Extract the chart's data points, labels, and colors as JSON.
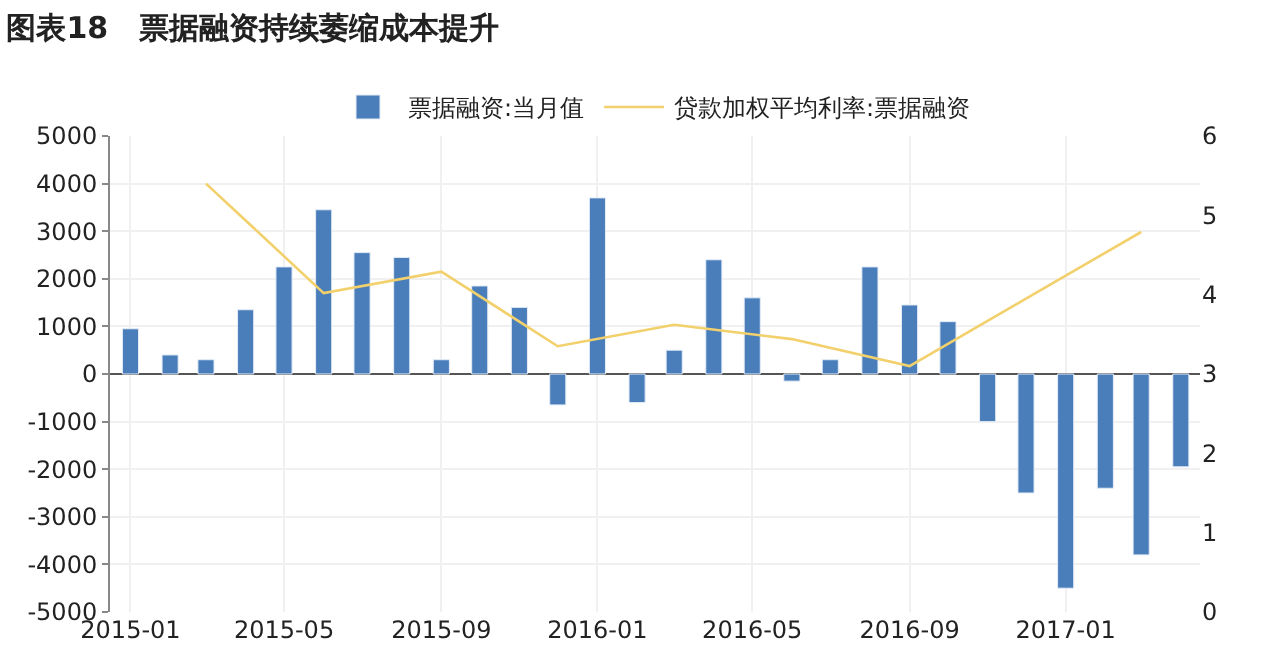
{
  "chart_data": {
    "type": "bar",
    "title": "图表18   票据融资持续萎缩成本提升",
    "x": [
      "2015-01",
      "2015-02",
      "2015-03",
      "2015-04",
      "2015-05",
      "2015-06",
      "2015-07",
      "2015-08",
      "2015-09",
      "2015-10",
      "2015-11",
      "2015-12",
      "2016-01",
      "2016-02",
      "2016-03",
      "2016-04",
      "2016-05",
      "2016-06",
      "2016-07",
      "2016-08",
      "2016-09",
      "2016-10",
      "2016-11",
      "2016-12",
      "2017-01",
      "2017-02",
      "2017-03",
      "2017-04"
    ],
    "series": [
      {
        "name": "票据融资:当月值",
        "color": "#4a7ebb",
        "values": [
          950,
          400,
          300,
          1350,
          2250,
          3450,
          2550,
          2450,
          300,
          1850,
          1400,
          -650,
          3700,
          -600,
          500,
          2400,
          1600,
          -150,
          300,
          2250,
          1450,
          1100,
          -1000,
          -2500,
          -4500,
          -2400,
          -3800,
          -1950
        ]
      },
      {
        "name": "贷款加权平均利率:票据融资",
        "type": "line",
        "axis": "y2",
        "color": "#f2d06b",
        "x": [
          "2015-03",
          "2015-06",
          "2015-09",
          "2015-12",
          "2016-03",
          "2016-06",
          "2016-09",
          "2016-12",
          "2017-03"
        ],
        "values": [
          5.4,
          4.02,
          4.29,
          3.35,
          3.62,
          3.44,
          3.1,
          3.95,
          4.79
        ]
      }
    ],
    "xlim": [
      "2014-12-16",
      "2017-04-16"
    ],
    "xticks": [
      "2015-01",
      "2015-05",
      "2015-09",
      "2016-01",
      "2016-05",
      "2016-09",
      "2017-01"
    ],
    "ylim": [
      -5000,
      5000
    ],
    "yticks": [
      -5000,
      -4000,
      -3000,
      -2000,
      -1000,
      0,
      1000,
      2000,
      3000,
      4000,
      5000
    ],
    "y2lim": [
      0,
      6
    ],
    "y2ticks": [
      0,
      1,
      2,
      3,
      4,
      5,
      6
    ],
    "grid": true,
    "legend": "top",
    "marker": "none",
    "line_style": "solid"
  }
}
